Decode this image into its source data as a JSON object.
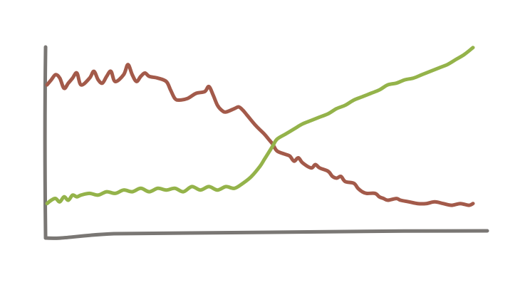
{
  "chart_data": {
    "type": "line",
    "title": "",
    "xlabel": "",
    "ylabel": "",
    "xlim": [
      0,
      100
    ],
    "ylim": [
      0,
      100
    ],
    "grid": false,
    "legend": "none",
    "axis_color": "#7a7774",
    "series": [
      {
        "color": "#a35a4a",
        "values": [
          [
            0,
            76
          ],
          [
            1,
            79
          ],
          [
            2,
            82
          ],
          [
            3,
            80
          ],
          [
            4,
            74
          ],
          [
            5,
            77
          ],
          [
            6,
            80
          ],
          [
            7,
            83
          ],
          [
            8,
            76
          ],
          [
            10,
            80
          ],
          [
            11,
            84
          ],
          [
            12,
            79
          ],
          [
            13,
            77
          ],
          [
            14,
            81
          ],
          [
            15,
            84
          ],
          [
            16,
            78
          ],
          [
            18,
            82
          ],
          [
            19,
            88
          ],
          [
            20,
            82
          ],
          [
            21,
            78
          ],
          [
            22,
            81
          ],
          [
            23,
            83
          ],
          [
            24,
            81
          ],
          [
            26,
            80
          ],
          [
            28,
            78
          ],
          [
            29,
            73
          ],
          [
            30,
            68
          ],
          [
            31,
            67
          ],
          [
            33,
            68
          ],
          [
            35,
            71
          ],
          [
            37,
            72
          ],
          [
            38,
            75
          ],
          [
            39,
            70
          ],
          [
            40,
            64
          ],
          [
            41,
            61
          ],
          [
            42,
            60
          ],
          [
            44,
            62
          ],
          [
            45,
            63
          ],
          [
            46,
            61
          ],
          [
            47,
            58
          ],
          [
            49,
            52
          ],
          [
            51,
            47
          ],
          [
            52,
            44
          ],
          [
            53,
            41
          ],
          [
            54,
            37
          ],
          [
            56,
            35
          ],
          [
            57,
            34
          ],
          [
            58,
            31
          ],
          [
            59,
            33
          ],
          [
            60,
            30
          ],
          [
            62,
            27
          ],
          [
            63,
            29
          ],
          [
            64,
            27
          ],
          [
            66,
            25
          ],
          [
            67,
            22
          ],
          [
            68,
            21
          ],
          [
            69,
            22
          ],
          [
            70,
            19
          ],
          [
            72,
            18
          ],
          [
            73,
            15
          ],
          [
            74,
            13
          ],
          [
            75,
            12
          ],
          [
            77,
            12
          ],
          [
            78,
            10
          ],
          [
            79,
            9
          ],
          [
            80,
            8
          ],
          [
            82,
            9
          ],
          [
            83,
            8
          ],
          [
            85,
            7
          ],
          [
            87,
            6
          ],
          [
            89,
            6
          ],
          [
            91,
            7
          ],
          [
            93,
            6
          ],
          [
            95,
            5
          ],
          [
            97,
            6
          ],
          [
            99,
            5
          ],
          [
            100,
            6
          ]
        ]
      },
      {
        "color": "#94b34a",
        "values": [
          [
            0,
            6
          ],
          [
            1,
            8
          ],
          [
            2,
            9
          ],
          [
            3,
            7
          ],
          [
            4,
            10
          ],
          [
            5,
            8
          ],
          [
            6,
            11
          ],
          [
            7,
            10
          ],
          [
            8,
            11
          ],
          [
            10,
            12
          ],
          [
            12,
            11
          ],
          [
            14,
            13
          ],
          [
            16,
            12
          ],
          [
            18,
            14
          ],
          [
            20,
            13
          ],
          [
            22,
            15
          ],
          [
            24,
            13
          ],
          [
            26,
            15
          ],
          [
            28,
            14
          ],
          [
            30,
            15
          ],
          [
            32,
            13
          ],
          [
            34,
            16
          ],
          [
            36,
            14
          ],
          [
            38,
            16
          ],
          [
            40,
            14
          ],
          [
            42,
            16
          ],
          [
            44,
            15
          ],
          [
            46,
            18
          ],
          [
            48,
            22
          ],
          [
            50,
            28
          ],
          [
            51,
            32
          ],
          [
            52,
            36
          ],
          [
            53,
            40
          ],
          [
            54,
            44
          ],
          [
            56,
            47
          ],
          [
            58,
            50
          ],
          [
            60,
            53
          ],
          [
            62,
            55
          ],
          [
            64,
            57
          ],
          [
            66,
            59
          ],
          [
            68,
            62
          ],
          [
            70,
            64
          ],
          [
            72,
            67
          ],
          [
            74,
            69
          ],
          [
            76,
            71
          ],
          [
            78,
            73
          ],
          [
            80,
            76
          ],
          [
            82,
            77
          ],
          [
            84,
            79
          ],
          [
            86,
            80
          ],
          [
            88,
            82
          ],
          [
            90,
            84
          ],
          [
            92,
            86
          ],
          [
            94,
            88
          ],
          [
            96,
            91
          ],
          [
            98,
            94
          ],
          [
            100,
            98
          ]
        ]
      }
    ]
  }
}
